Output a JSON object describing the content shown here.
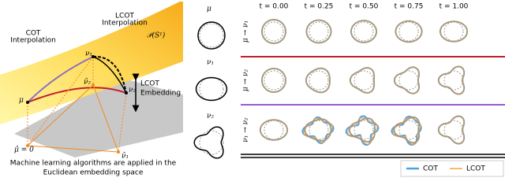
{
  "left_panel": {
    "cot_label": [
      "COT",
      "Interpolation"
    ],
    "lcot_label": [
      "LCOT",
      "Interpolation"
    ],
    "manifold_label": "𝒫(S¹)",
    "points": {
      "mu": "μ",
      "nu1": "ν₁",
      "nu2": "ν₂",
      "mu_hat": "μ̂ = 0",
      "nu1_hat": "ν̂₁",
      "nu2_hat": "ν̂₂"
    },
    "embedding_label": [
      "LCOT",
      "Embedding"
    ],
    "caption": [
      "Machine learning algorithms are applied in the",
      "Euclidean embedding space"
    ]
  },
  "reference_shapes": [
    "μ",
    "ν₁",
    "ν₂"
  ],
  "time_labels": [
    "t = 0.00",
    "t = 0.25",
    "t = 0.50",
    "t = 0.75",
    "t = 1.00"
  ],
  "rows": [
    "μ → ν₁",
    "μ → ν₂",
    "ν₁ → ν₂"
  ],
  "legend": [
    "COT",
    "LCOT"
  ]
}
